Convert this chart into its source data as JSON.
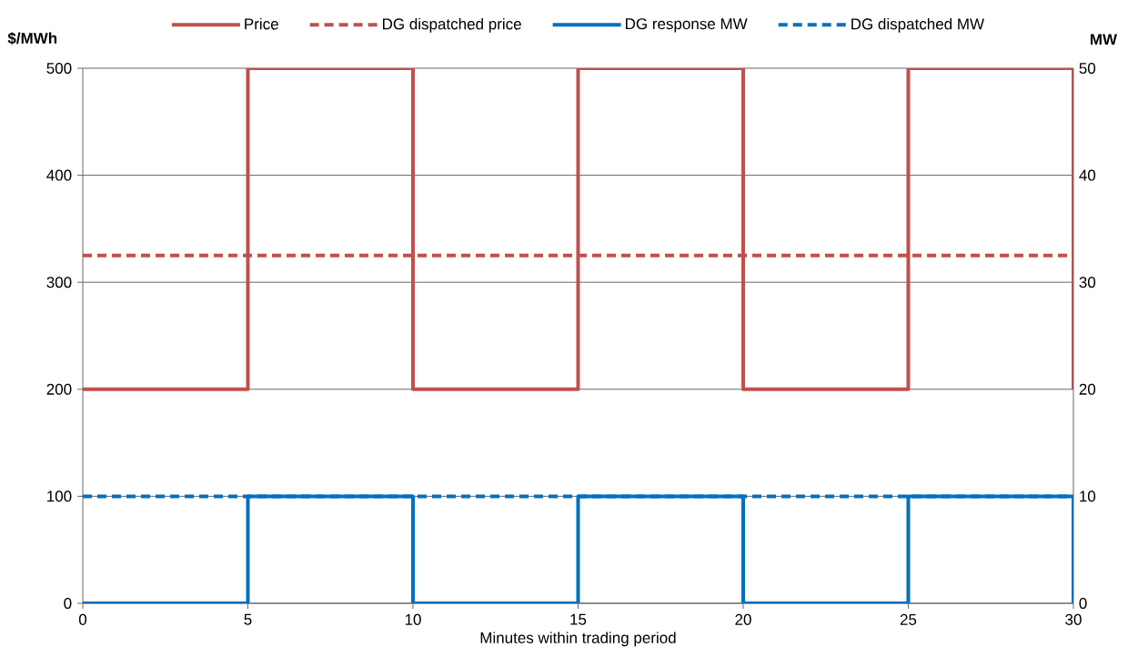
{
  "chart_data": {
    "type": "line",
    "xlabel": "Minutes within trading period",
    "ylabel": "$/MWh",
    "y2label": "MW",
    "xlim": [
      0,
      30
    ],
    "xticks": [
      0,
      5,
      10,
      15,
      20,
      25,
      30
    ],
    "ylim": [
      0,
      500
    ],
    "yticks": [
      0,
      100,
      200,
      300,
      400,
      500
    ],
    "y2lim": [
      0,
      50
    ],
    "y2ticks": [
      0,
      10,
      20,
      30,
      40,
      50
    ],
    "grid": "y",
    "legend": "top",
    "series": [
      {
        "name": "Price",
        "type": "step",
        "color": "#c0504d",
        "line_style": "solid",
        "x": [
          0,
          5,
          10,
          15,
          20,
          25,
          30
        ],
        "values": [
          200,
          500,
          200,
          500,
          200,
          500,
          200
        ]
      },
      {
        "name": "DG dispatched price",
        "color": "#c0504d",
        "line_style": "dashed",
        "x": [
          0,
          30
        ],
        "values": [
          325,
          325
        ]
      },
      {
        "name": "DG response MW",
        "type": "step",
        "axis": "y2",
        "color": "#0070c0",
        "line_style": "solid",
        "x": [
          0,
          5,
          10,
          15,
          20,
          25,
          30
        ],
        "values": [
          0,
          10,
          0,
          10,
          0,
          10,
          0
        ]
      },
      {
        "name": "DG dispatched MW",
        "axis": "y2",
        "color": "#0070c0",
        "line_style": "dashed",
        "x": [
          0,
          30
        ],
        "values": [
          10,
          10
        ]
      }
    ]
  }
}
